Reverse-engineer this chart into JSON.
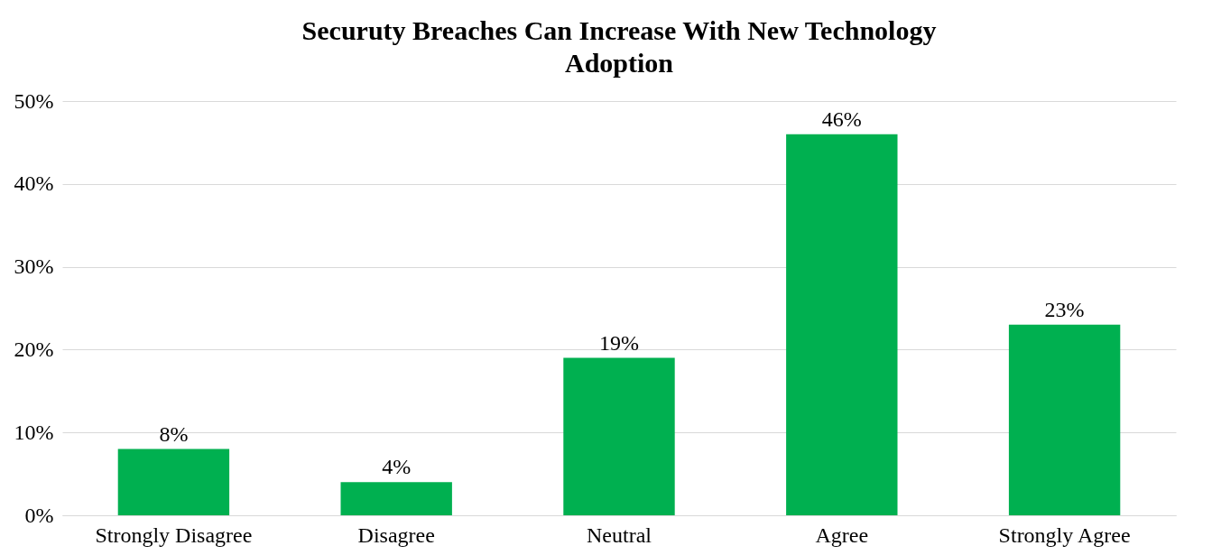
{
  "chart_data": {
    "type": "bar",
    "title": "Securuty Breaches Can Increase With New Technology Adoption",
    "categories": [
      "Strongly Disagree",
      "Disagree",
      "Neutral",
      "Agree",
      "Strongly Agree"
    ],
    "values": [
      8,
      4,
      19,
      46,
      23
    ],
    "color": "#00b050",
    "value_labels": [
      "8%",
      "4%",
      "19%",
      "46%",
      "23%"
    ],
    "ylim": [
      0,
      50
    ],
    "yticks": [
      {
        "value": 0,
        "label": "0%"
      },
      {
        "value": 10,
        "label": "10%"
      },
      {
        "value": 20,
        "label": "20%"
      },
      {
        "value": 30,
        "label": "30%"
      },
      {
        "value": 40,
        "label": "40%"
      },
      {
        "value": 50,
        "label": "50%"
      }
    ],
    "grid": "y"
  }
}
